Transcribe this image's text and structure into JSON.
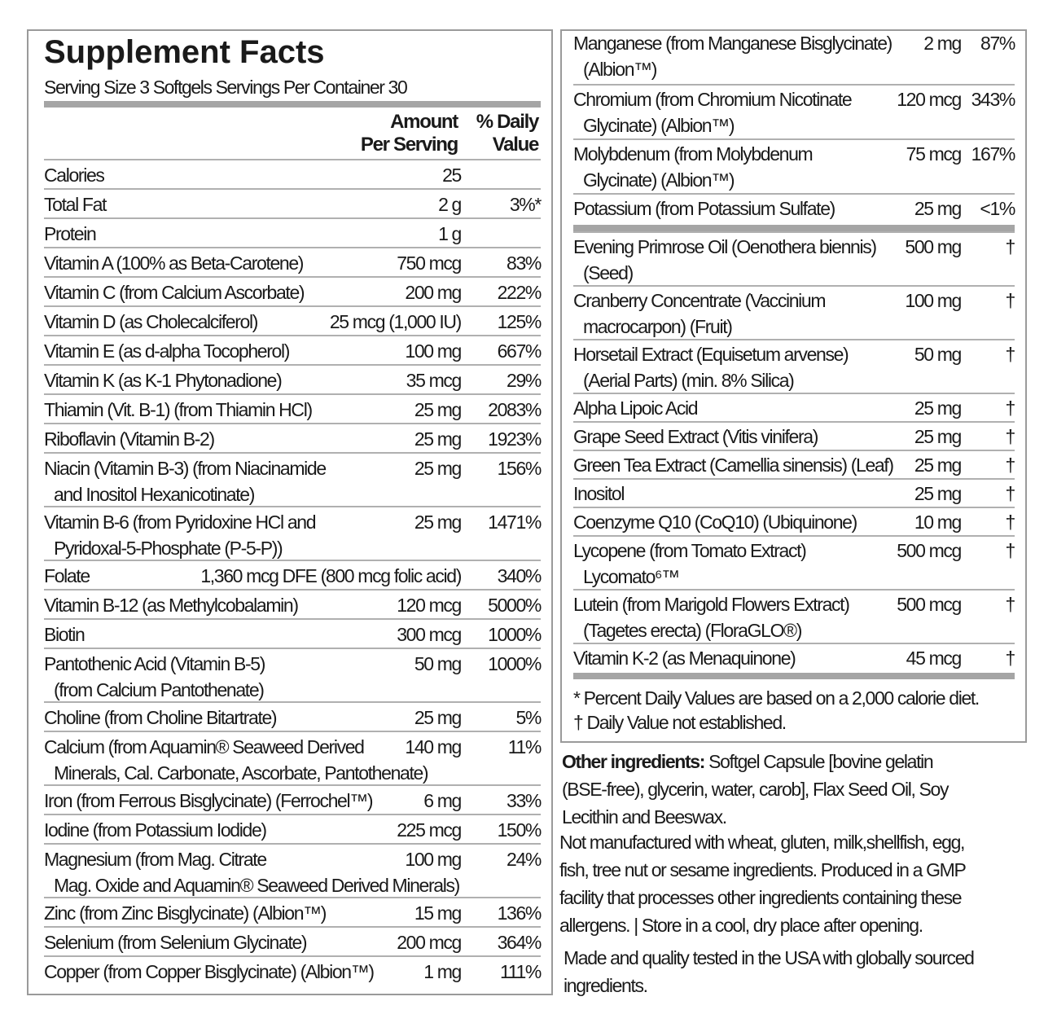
{
  "title": "Supplement Facts",
  "serving": "Serving Size 3 Softgels  Servings Per Container 30",
  "header": {
    "amount_line1": "Amount",
    "amount_line2": "Per Serving",
    "dv_line1": "% Daily",
    "dv_line2": "Value"
  },
  "left_rows": [
    {
      "name": "Calories",
      "name2": "",
      "amount": "25",
      "dv": ""
    },
    {
      "name": "Total Fat",
      "name2": "",
      "amount": "2 g",
      "dv": "3%*"
    },
    {
      "name": "Protein",
      "name2": "",
      "amount": "1 g",
      "dv": ""
    },
    {
      "name": "Vitamin A (100% as Beta-Carotene)",
      "name2": "",
      "amount": "750 mcg",
      "dv": "83%"
    },
    {
      "name": "Vitamin C (from Calcium Ascorbate)",
      "name2": "",
      "amount": "200 mg",
      "dv": "222%"
    },
    {
      "name": "Vitamin D (as Cholecalciferol)",
      "name2": "",
      "amount": "25 mcg (1,000 IU)",
      "dv": "125%"
    },
    {
      "name": "Vitamin E (as d-alpha Tocopherol)",
      "name2": "",
      "amount": "100 mg",
      "dv": "667%"
    },
    {
      "name": "Vitamin K (as K-1 Phytonadione)",
      "name2": "",
      "amount": "35 mcg",
      "dv": "29%"
    },
    {
      "name": "Thiamin (Vit. B-1) (from Thiamin HCl)",
      "name2": "",
      "amount": "25 mg",
      "dv": "2083%"
    },
    {
      "name": "Riboflavin (Vitamin B-2)",
      "name2": "",
      "amount": "25 mg",
      "dv": "1923%"
    },
    {
      "name": "Niacin (Vitamin B-3) (from Niacinamide",
      "name2": "and Inositol Hexanicotinate)",
      "amount": "25 mg",
      "dv": "156%"
    },
    {
      "name": "Vitamin B-6 (from Pyridoxine HCl and",
      "name2": "Pyridoxal-5-Phosphate (P-5-P))",
      "amount": "25 mg",
      "dv": "1471%"
    },
    {
      "name": "Folate",
      "name2": "",
      "amount": "1,360 mcg DFE (800 mcg folic acid)",
      "dv": "340%"
    },
    {
      "name": "Vitamin B-12 (as Methylcobalamin)",
      "name2": "",
      "amount": "120 mcg",
      "dv": "5000%"
    },
    {
      "name": "Biotin",
      "name2": "",
      "amount": "300 mcg",
      "dv": "1000%"
    },
    {
      "name": "Pantothenic Acid (Vitamin B-5)",
      "name2": "(from Calcium Pantothenate)",
      "amount": "50 mg",
      "dv": "1000%"
    },
    {
      "name": "Choline (from Choline Bitartrate)",
      "name2": "",
      "amount": "25 mg",
      "dv": "5%"
    },
    {
      "name": "Calcium (from Aquamin® Seaweed Derived",
      "name2": "Minerals, Cal. Carbonate, Ascorbate, Pantothenate)",
      "amount": "140 mg",
      "dv": "11%"
    },
    {
      "name": "Iron (from Ferrous Bisglycinate) (Ferrochel™)",
      "name2": "",
      "amount": "6 mg",
      "dv": "33%"
    },
    {
      "name": "Iodine (from Potassium Iodide)",
      "name2": "",
      "amount": "225 mcg",
      "dv": "150%"
    },
    {
      "name": "Magnesium (from Mag. Citrate",
      "name2": "Mag. Oxide and Aquamin® Seaweed Derived Minerals)",
      "amount": "100 mg",
      "dv": "24%"
    },
    {
      "name": "Zinc (from Zinc Bisglycinate) (Albion™)",
      "name2": "",
      "amount": "15 mg",
      "dv": "136%"
    },
    {
      "name": "Selenium (from Selenium Glycinate)",
      "name2": "",
      "amount": "200 mcg",
      "dv": "364%"
    },
    {
      "name": "Copper (from Copper Bisglycinate) (Albion™)",
      "name2": "",
      "amount": "1 mg",
      "dv": "111%"
    }
  ],
  "right_rows_a": [
    {
      "name": "Manganese (from Manganese Bisglycinate)",
      "name2": "(Albion™)",
      "amount": "2 mg",
      "dv": "87%"
    },
    {
      "name": "Chromium (from Chromium Nicotinate",
      "name2": "Glycinate) (Albion™)",
      "amount": "120 mcg",
      "dv": "343%"
    },
    {
      "name": "Molybdenum (from Molybdenum",
      "name2": "Glycinate) (Albion™)",
      "amount": "75 mcg",
      "dv": "167%"
    },
    {
      "name": "Potassium (from Potassium Sulfate)",
      "name2": "",
      "amount": "25 mg",
      "dv": "<1%"
    }
  ],
  "right_rows_b": [
    {
      "name": "Evening Primrose Oil (Oenothera biennis)",
      "name2": "(Seed)",
      "amount": "500 mg",
      "dv": "†"
    },
    {
      "name": "Cranberry Concentrate (Vaccinium",
      "name2": "macrocarpon) (Fruit)",
      "amount": "100 mg",
      "dv": "†"
    },
    {
      "name": "Horsetail Extract (Equisetum arvense)",
      "name2": "(Aerial Parts) (min. 8% Silica)",
      "amount": "50 mg",
      "dv": "†"
    },
    {
      "name": "Alpha Lipoic Acid",
      "name2": "",
      "amount": "25 mg",
      "dv": "†"
    },
    {
      "name": "Grape Seed Extract (Vitis vinifera)",
      "name2": "",
      "amount": "25 mg",
      "dv": "†"
    },
    {
      "name": "Green Tea Extract (Camellia sinensis) (Leaf)",
      "name2": "",
      "amount": "25 mg",
      "dv": "†"
    },
    {
      "name": "Inositol",
      "name2": "",
      "amount": "25 mg",
      "dv": "†"
    },
    {
      "name": "Coenzyme Q10 (CoQ10) (Ubiquinone)",
      "name2": "",
      "amount": "10 mg",
      "dv": "†"
    },
    {
      "name": "Lycopene (from Tomato Extract)",
      "name2": "Lycomato⁶™",
      "amount": "500 mcg",
      "dv": "†"
    },
    {
      "name": "Lutein (from Marigold Flowers Extract)",
      "name2": "(Tagetes erecta) (FloraGLO®)",
      "amount": "500 mcg",
      "dv": "†"
    },
    {
      "name": "Vitamin K-2 (as Menaquinone)",
      "name2": "",
      "amount": "45 mcg",
      "dv": "†"
    }
  ],
  "footnotes": {
    "percent_dv": "* Percent Daily Values are based on a 2,000 calorie diet.",
    "not_established": "† Daily Value not established."
  },
  "other": {
    "label": "Other ingredients:",
    "ingredients_1": " Softgel Capsule [bovine gelatin",
    "ingredients_2": "(BSE-free), glycerin, water, carob], Flax Seed Oil, Soy",
    "ingredients_3": "Lecithin and Beeswax.",
    "allergen_1": "Not manufactured with wheat, gluten, milk,shellfish, egg,",
    "allergen_2": "fish, tree nut or sesame ingredients. Produced in a GMP",
    "allergen_3": "facility that processes other ingredients containing these",
    "allergen_4": "allergens. |  Store in a cool, dry place after opening.",
    "made_1": "Made and quality tested in the USA with globally sourced",
    "made_2": "ingredients."
  }
}
